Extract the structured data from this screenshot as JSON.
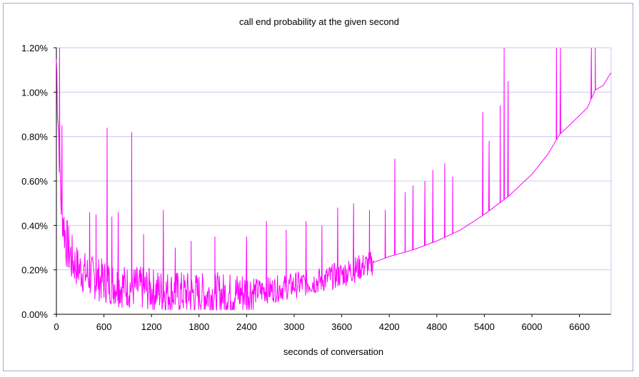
{
  "chart_data": {
    "type": "line",
    "title": "call end probability at the given second",
    "xlabel": "seconds of conversation",
    "ylabel": "",
    "xlim": [
      0,
      7000
    ],
    "ylim": [
      0,
      1.2
    ],
    "x_ticks": [
      0,
      600,
      1200,
      1800,
      2400,
      3000,
      3600,
      4200,
      4800,
      5400,
      6000,
      6600
    ],
    "x_tick_labels": [
      "0",
      "600",
      "1200",
      "1800",
      "2400",
      "3000",
      "3600",
      "4200",
      "4800",
      "5400",
      "6000",
      "6600"
    ],
    "y_ticks": [
      0,
      0.2,
      0.4,
      0.6,
      0.8,
      1.0,
      1.2
    ],
    "y_tick_labels": [
      "0.00%",
      "0.20%",
      "0.40%",
      "0.60%",
      "0.80%",
      "1.00%",
      "1.20%"
    ],
    "grid": true,
    "legend": "none",
    "colors": {
      "series": "#ff00ff",
      "grid": "#c8c8f0",
      "frame": "#a9a9c8"
    },
    "series": [
      {
        "baseline": {
          "x": [
            0,
            20,
            60,
            120,
            200,
            300,
            420,
            600,
            800,
            1000,
            1200,
            1400,
            1600,
            1800,
            2000,
            2200,
            2400,
            2700,
            3000,
            3300,
            3600,
            3900,
            4200,
            4500,
            4800,
            5100,
            5400,
            5700,
            6000,
            6200,
            6350,
            6500,
            6700,
            6800,
            6900,
            7000
          ],
          "y": [
            1.15,
            0.9,
            0.5,
            0.33,
            0.24,
            0.2,
            0.17,
            0.15,
            0.13,
            0.12,
            0.11,
            0.1,
            0.095,
            0.09,
            0.09,
            0.09,
            0.1,
            0.11,
            0.13,
            0.15,
            0.18,
            0.22,
            0.26,
            0.29,
            0.33,
            0.38,
            0.45,
            0.53,
            0.63,
            0.72,
            0.81,
            0.86,
            0.93,
            1.01,
            1.03,
            1.09
          ]
        },
        "noise_until": 4000,
        "spikes": [
          {
            "x": 40,
            "y": 1.2
          },
          {
            "x": 70,
            "y": 0.85
          },
          {
            "x": 420,
            "y": 0.46
          },
          {
            "x": 500,
            "y": 0.45
          },
          {
            "x": 640,
            "y": 0.84
          },
          {
            "x": 700,
            "y": 0.44
          },
          {
            "x": 780,
            "y": 0.46
          },
          {
            "x": 950,
            "y": 0.82
          },
          {
            "x": 1100,
            "y": 0.36
          },
          {
            "x": 1350,
            "y": 0.47
          },
          {
            "x": 1500,
            "y": 0.3
          },
          {
            "x": 1700,
            "y": 0.33
          },
          {
            "x": 2000,
            "y": 0.35
          },
          {
            "x": 2400,
            "y": 0.35
          },
          {
            "x": 2650,
            "y": 0.42
          },
          {
            "x": 2900,
            "y": 0.38
          },
          {
            "x": 3150,
            "y": 0.42
          },
          {
            "x": 3350,
            "y": 0.4
          },
          {
            "x": 3550,
            "y": 0.48
          },
          {
            "x": 3750,
            "y": 0.5
          },
          {
            "x": 3950,
            "y": 0.47
          },
          {
            "x": 4150,
            "y": 0.47
          },
          {
            "x": 4270,
            "y": 0.7
          },
          {
            "x": 4400,
            "y": 0.55
          },
          {
            "x": 4500,
            "y": 0.58
          },
          {
            "x": 4650,
            "y": 0.6
          },
          {
            "x": 4750,
            "y": 0.65
          },
          {
            "x": 4900,
            "y": 0.68
          },
          {
            "x": 5000,
            "y": 0.62
          },
          {
            "x": 5380,
            "y": 0.91
          },
          {
            "x": 5460,
            "y": 0.78
          },
          {
            "x": 5600,
            "y": 0.94
          },
          {
            "x": 5650,
            "y": 1.2
          },
          {
            "x": 5700,
            "y": 1.05
          },
          {
            "x": 6310,
            "y": 1.2
          },
          {
            "x": 6360,
            "y": 1.2
          },
          {
            "x": 6750,
            "y": 1.2
          },
          {
            "x": 6800,
            "y": 1.2
          }
        ]
      }
    ]
  }
}
